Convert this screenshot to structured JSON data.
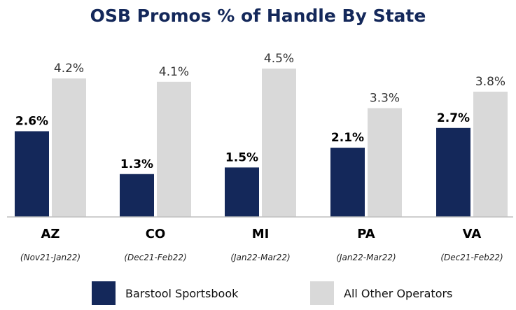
{
  "chart_data": {
    "type": "bar",
    "title": "OSB Promos % of Handle By State",
    "categories": [
      "AZ",
      "CO",
      "MI",
      "PA",
      "VA"
    ],
    "category_sublabels": [
      "(Nov21-Jan22)",
      "(Dec21-Feb22)",
      "(Jan22-Mar22)",
      "(Jan22-Mar22)",
      "(Dec21-Feb22)"
    ],
    "series": [
      {
        "name": "Barstool Sportsbook",
        "color": "#14285a",
        "values": [
          2.6,
          1.3,
          1.5,
          2.1,
          2.7
        ],
        "labels": [
          "2.6%",
          "1.3%",
          "1.5%",
          "2.1%",
          "2.7%"
        ]
      },
      {
        "name": "All Other Operators",
        "color": "#d9d9d9",
        "values": [
          4.2,
          4.1,
          4.5,
          3.3,
          3.8
        ],
        "labels": [
          "4.2%",
          "4.1%",
          "4.5%",
          "3.3%",
          "3.8%"
        ]
      }
    ],
    "ylim": [
      0,
      4.5
    ],
    "grid": false,
    "legend": "bottom",
    "axis_color": "#bfbfbf"
  }
}
